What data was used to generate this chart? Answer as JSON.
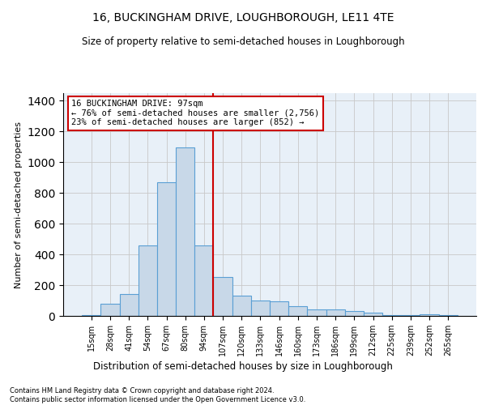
{
  "title": "16, BUCKINGHAM DRIVE, LOUGHBOROUGH, LE11 4TE",
  "subtitle": "Size of property relative to semi-detached houses in Loughborough",
  "xlabel": "Distribution of semi-detached houses by size in Loughborough",
  "ylabel": "Number of semi-detached properties",
  "property_label": "16 BUCKINGHAM DRIVE: 97sqm",
  "pct_smaller": 76,
  "count_smaller": 2756,
  "pct_larger": 23,
  "count_larger": 852,
  "bin_labels": [
    "15sqm",
    "28sqm",
    "41sqm",
    "54sqm",
    "67sqm",
    "80sqm",
    "94sqm",
    "107sqm",
    "120sqm",
    "133sqm",
    "146sqm",
    "160sqm",
    "173sqm",
    "186sqm",
    "199sqm",
    "212sqm",
    "225sqm",
    "239sqm",
    "252sqm",
    "265sqm"
  ],
  "bar_heights": [
    5,
    80,
    145,
    460,
    870,
    1095,
    460,
    255,
    130,
    100,
    95,
    65,
    40,
    40,
    30,
    20,
    5,
    5,
    10,
    5
  ],
  "bar_color": "#c8d8e8",
  "bar_edge_color": "#5a9fd4",
  "vline_x": 6.5,
  "vline_color": "#cc0000",
  "annotation_box_color": "#cc0000",
  "ylim": [
    0,
    1450
  ],
  "yticks": [
    0,
    200,
    400,
    600,
    800,
    1000,
    1200,
    1400
  ],
  "grid_color": "#c8c8c8",
  "bg_color": "#e8f0f8",
  "footer_line1": "Contains HM Land Registry data © Crown copyright and database right 2024.",
  "footer_line2": "Contains public sector information licensed under the Open Government Licence v3.0."
}
